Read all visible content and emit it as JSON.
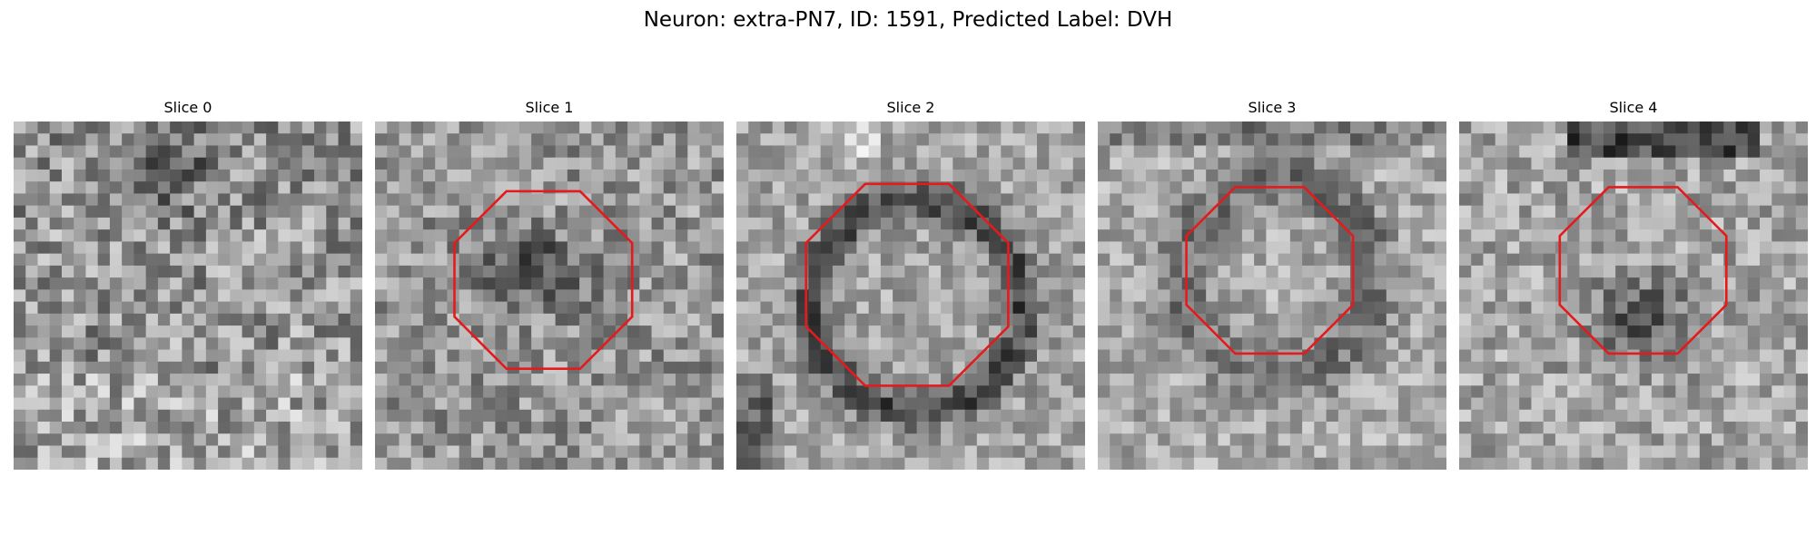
{
  "figure": {
    "title": "Neuron: extra-PN7, ID: 1591, Predicted Label: DVH",
    "panels": [
      {
        "title": "Slice 0",
        "has_outline": false
      },
      {
        "title": "Slice 1",
        "has_outline": true
      },
      {
        "title": "Slice 2",
        "has_outline": true
      },
      {
        "title": "Slice 3",
        "has_outline": true
      },
      {
        "title": "Slice 4",
        "has_outline": true
      }
    ],
    "outline_color": "#e41a1c",
    "colormap": "grayscale"
  }
}
